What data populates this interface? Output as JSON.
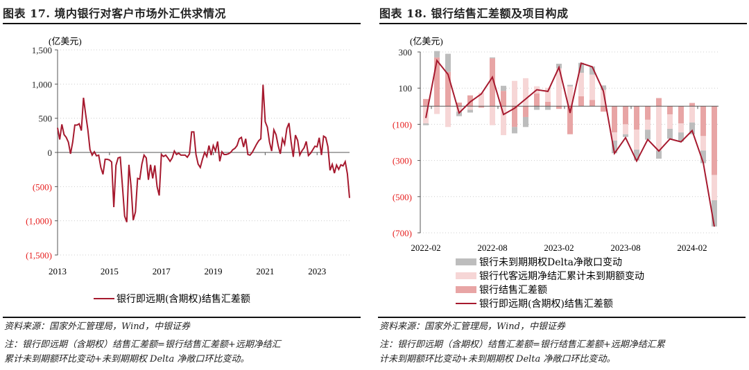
{
  "colors": {
    "line": "#a6192e",
    "spot": "#e8a5a5",
    "forward": "#f6d6d6",
    "option": "#bdbdbd",
    "negative_tick": "#e61e1e"
  },
  "left": {
    "title": "图表 17. 境内银行对客户市场外汇供求情况",
    "source": "资料来源：国家外汇管理局，Wind，中银证券",
    "note_line1": "注：银行即远期（含期权）结售汇差额=银行结售汇差额+远期净结汇",
    "note_line2": "累计未到期额环比变动+未到期期权 Delta 净敞口环比变动。"
  },
  "right": {
    "title": "图表 18. 银行结售汇差额及项目构成",
    "source": "资料来源：国家外汇管理局，Wind，中银证券",
    "note_line1": "注：银行即远期（含期权）结售汇差额=银行结售汇差额+远期净结汇累",
    "note_line2": "计未到期额环比变动+未到期期权 Delta 净敞口环比变动。"
  },
  "chart_data": [
    {
      "type": "line",
      "unit_label": "(亿美元)",
      "ylim": [
        -1500,
        1500
      ],
      "yticks": [
        1500,
        1000,
        500,
        0,
        -500,
        -1000,
        -1500
      ],
      "ytick_labels": [
        "1,500",
        "1,000",
        "500",
        "0",
        "(500)",
        "(1,000)",
        "(1,500)"
      ],
      "xtick_labels": [
        "2013",
        "2015",
        "2017",
        "2019",
        "2021",
        "2023"
      ],
      "start": "2013-01",
      "series": [
        {
          "name": "银行即远期(含期权)结售汇差额",
          "values": [
            360,
            190,
            410,
            260,
            220,
            150,
            -20,
            150,
            400,
            400,
            420,
            320,
            800,
            560,
            330,
            40,
            -40,
            10,
            -50,
            -40,
            -220,
            -320,
            -100,
            -100,
            -110,
            -140,
            -800,
            -190,
            -80,
            -70,
            -500,
            -930,
            -1020,
            -180,
            -500,
            -990,
            -870,
            -380,
            -390,
            -170,
            -40,
            -80,
            -400,
            -180,
            -380,
            -190,
            -500,
            -630,
            -30,
            -60,
            -40,
            -80,
            -130,
            -80,
            20,
            -30,
            -10,
            -40,
            -40,
            -40,
            -70,
            -20,
            300,
            300,
            -30,
            -170,
            -220,
            -100,
            0,
            -60,
            100,
            -40,
            100,
            20,
            160,
            -130,
            10,
            -30,
            -30,
            -20,
            0,
            40,
            60,
            100,
            200,
            220,
            80,
            200,
            -30,
            -40,
            0,
            60,
            120,
            170,
            200,
            990,
            450,
            370,
            150,
            20,
            330,
            260,
            100,
            -20,
            200,
            120,
            350,
            430,
            150,
            -65,
            253,
            176,
            -37,
            24,
            68,
            161,
            -46,
            -11,
            40,
            91,
            82,
            215,
            -37,
            238,
            218,
            84,
            -261,
            -174,
            -303,
            -184,
            -248,
            -181,
            -197,
            -135,
            -312,
            -666
          ]
        }
      ],
      "legend": "bottom"
    },
    {
      "type": "bar+line",
      "unit_label": "(亿美元)",
      "ylim": [
        -700,
        300
      ],
      "yticks": [
        300,
        100,
        -100,
        -300,
        -500,
        -700
      ],
      "ytick_labels": [
        "300",
        "100",
        "(100)",
        "(300)",
        "(500)",
        "(700)"
      ],
      "xtick_labels": [
        "2022-02",
        "2022-08",
        "2023-02",
        "2023-08",
        "2024-02"
      ],
      "categories": [
        "2022-02",
        "2022-03",
        "2022-04",
        "2022-05",
        "2022-06",
        "2022-07",
        "2022-08",
        "2022-09",
        "2022-10",
        "2022-11",
        "2022-12",
        "2023-01",
        "2023-02",
        "2023-03",
        "2023-04",
        "2023-05",
        "2023-06",
        "2023-07",
        "2023-08",
        "2023-09",
        "2023-10",
        "2023-11",
        "2023-12",
        "2024-01",
        "2024-02",
        "2024-03",
        "2024-04"
      ],
      "series": [
        {
          "name": "银行未到期期权Delta净敞口变动",
          "kind": "bar",
          "values": [
            -10,
            35,
            100,
            -25,
            -15,
            0,
            5,
            28,
            -35,
            -55,
            -20,
            -20,
            25,
            8,
            55,
            45,
            25,
            -70,
            -15,
            -60,
            -55,
            -45,
            -55,
            -50,
            -65,
            -70,
            -145
          ]
        },
        {
          "name": "银行代客远期净结汇累计未到期额变动",
          "kind": "bar",
          "values": [
            -95,
            -43,
            -115,
            -30,
            -20,
            75,
            -105,
            -160,
            140,
            155,
            40,
            77,
            210,
            110,
            130,
            140,
            90,
            -45,
            -55,
            -110,
            -55,
            -245,
            -80,
            -50,
            -90,
            -80,
            -140
          ]
        },
        {
          "name": "银行结售汇差额",
          "kind": "bar",
          "values": [
            40,
            270,
            190,
            20,
            60,
            -8,
            265,
            85,
            -115,
            -60,
            70,
            25,
            -15,
            -155,
            55,
            35,
            -30,
            -145,
            -100,
            -130,
            -75,
            45,
            -45,
            -95,
            18,
            -165,
            -380
          ]
        },
        {
          "name": "银行即远期(含期权)结售汇差额",
          "kind": "line",
          "values": [
            -65,
            253,
            176,
            -37,
            24,
            68,
            161,
            -46,
            -11,
            40,
            91,
            82,
            215,
            -37,
            238,
            218,
            84,
            -261,
            -174,
            -303,
            -184,
            -248,
            -181,
            -197,
            -135,
            -312,
            -666
          ]
        }
      ],
      "legend": "bottom"
    }
  ]
}
